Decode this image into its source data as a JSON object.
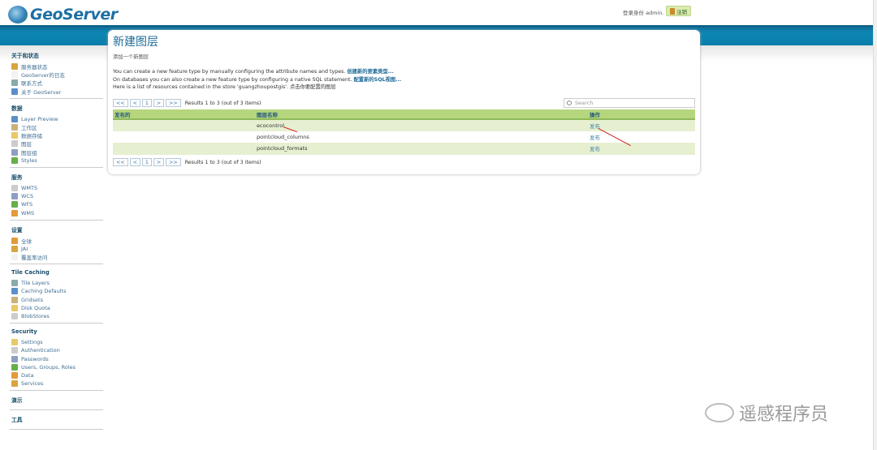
{
  "header": {
    "logo_text": "GeoServer",
    "login_text": "登录身份 admin.",
    "logout_label": "注销"
  },
  "sidebar": {
    "sections": [
      {
        "title": "关于和状态",
        "items": [
          "服务器状态",
          "GeoServer的日志",
          "联系方式",
          "关于 GeoServer"
        ]
      },
      {
        "title": "数据",
        "items": [
          "Layer Preview",
          "工作区",
          "数据存储",
          "图层",
          "图层组",
          "Styles"
        ]
      },
      {
        "title": "服务",
        "items": [
          "WMTS",
          "WCS",
          "WFS",
          "WMS"
        ]
      },
      {
        "title": "设置",
        "items": [
          "全球",
          "JAI",
          "覆盖率访问"
        ]
      },
      {
        "title": "Tile Caching",
        "items": [
          "Tile Layers",
          "Caching Defaults",
          "Gridsets",
          "Disk Quota",
          "BlobStores"
        ]
      },
      {
        "title": "Security",
        "items": [
          "Settings",
          "Authentication",
          "Passwords",
          "Users, Groups, Roles",
          "Data",
          "Services"
        ]
      },
      {
        "title": "演示",
        "items": []
      },
      {
        "title": "工具",
        "items": []
      }
    ]
  },
  "main": {
    "title": "新建图层",
    "subtitle": "添加一个新图层",
    "line1": "You can create a new feature type by manually configuring the attribute names and types.",
    "line1_link": "创建新的要素类型...",
    "line2": "On databases you can also create a new feature type by configuring a native SQL statement.",
    "line2_link": "配置新的SQL视图...",
    "line3": "Here is a list of resources contained in the store 'guangzhoupostgis'. 点击你要配置的图层",
    "pager": {
      "first": "<<",
      "prev": "<",
      "page": "1",
      "next": ">",
      "last": ">>",
      "results": "Results 1 to 3 (out of 3 items)"
    },
    "search_placeholder": "Search",
    "columns": [
      "发布的",
      "图层名称",
      "操作"
    ],
    "rows": [
      {
        "published": "",
        "name": "ecocontrol",
        "action": "发布"
      },
      {
        "published": "",
        "name": "pointcloud_columns",
        "action": "发布"
      },
      {
        "published": "",
        "name": "pointcloud_formats",
        "action": "发布"
      }
    ]
  },
  "watermark": "遥感程序员",
  "colors": {
    "band": "#0d7aa5",
    "table_header": "#b6d67e",
    "row_alt": "#e6f0d1",
    "link": "#1d6a96",
    "arrow": "#d0201a"
  }
}
